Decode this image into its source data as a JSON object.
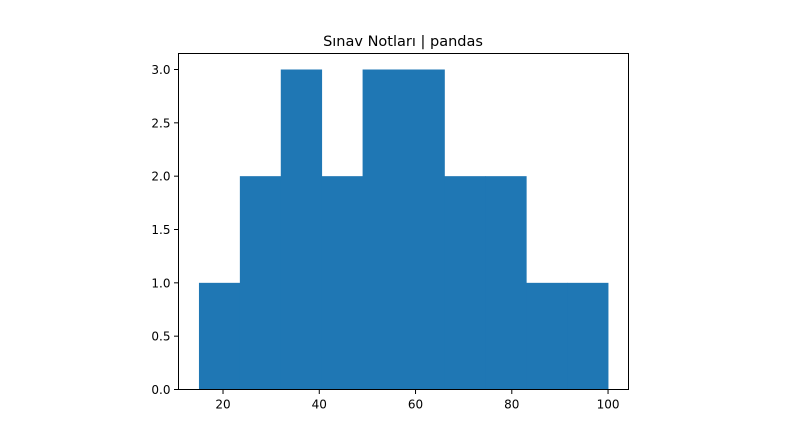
{
  "chart_data": {
    "type": "bar",
    "title": "Sınav Notları | pandas",
    "xlabel": "",
    "ylabel": "",
    "bins": [
      {
        "x0": 15.0,
        "x1": 23.5,
        "count": 1
      },
      {
        "x0": 23.5,
        "x1": 32.0,
        "count": 2
      },
      {
        "x0": 32.0,
        "x1": 40.5,
        "count": 3
      },
      {
        "x0": 40.5,
        "x1": 49.0,
        "count": 2
      },
      {
        "x0": 49.0,
        "x1": 57.5,
        "count": 3
      },
      {
        "x0": 57.5,
        "x1": 66.0,
        "count": 3
      },
      {
        "x0": 66.0,
        "x1": 74.5,
        "count": 2
      },
      {
        "x0": 74.5,
        "x1": 83.0,
        "count": 2
      },
      {
        "x0": 83.0,
        "x1": 91.5,
        "count": 1
      },
      {
        "x0": 91.5,
        "x1": 100.0,
        "count": 1
      }
    ],
    "xlim": [
      10.75,
      104.25
    ],
    "ylim": [
      0,
      3.15
    ],
    "xticks": [
      20,
      40,
      60,
      80,
      100
    ],
    "xtick_labels": [
      "20",
      "40",
      "60",
      "80",
      "100"
    ],
    "yticks": [
      0,
      0.5,
      1,
      1.5,
      2,
      2.5,
      3
    ],
    "ytick_labels": [
      "0.0",
      "0.5",
      "1.0",
      "1.5",
      "2.0",
      "2.5",
      "3.0"
    ],
    "bar_color": "#1f77b4",
    "grid": false,
    "legend": "none"
  }
}
